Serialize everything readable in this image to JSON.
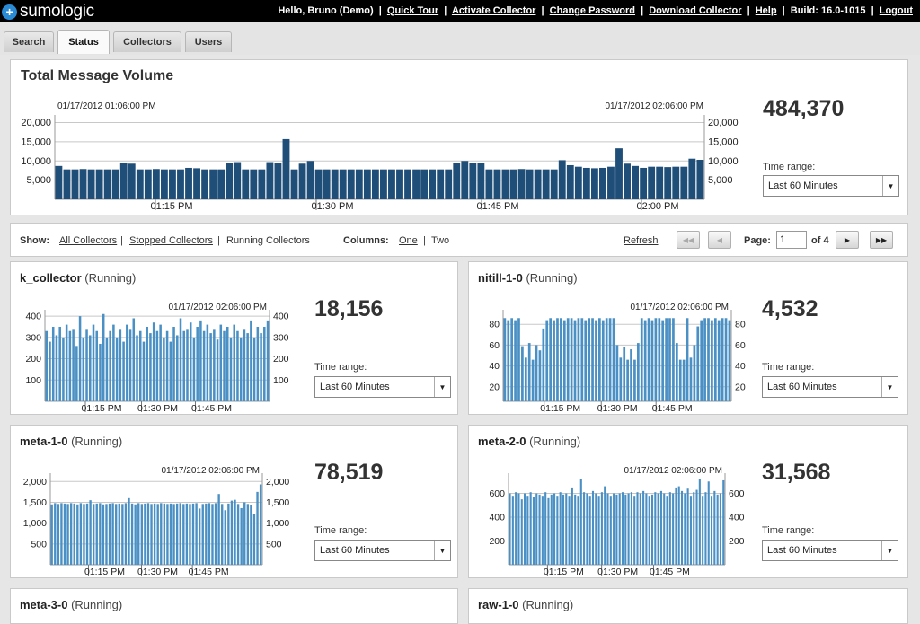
{
  "header": {
    "logo_text": "sumologic",
    "logo_mark": "+",
    "greeting_prefix": "Hello,",
    "greeting_user": "Bruno (Demo)",
    "links": [
      "Quick Tour",
      "Activate Collector",
      "Change Password",
      "Download Collector",
      "Help"
    ],
    "build": "Build: 16.0-1015",
    "logout": "Logout"
  },
  "tabs": [
    "Search",
    "Status",
    "Collectors",
    "Users"
  ],
  "total": {
    "title": "Total Message Volume",
    "value": "484,370",
    "time_range_label": "Time range:",
    "time_range_value": "Last 60 Minutes",
    "chart": {
      "start_time": "01/17/2012 01:06:00 PM",
      "end_time": "01/17/2012 02:06:00 PM"
    }
  },
  "toolbar": {
    "show_label": "Show:",
    "filters": [
      "All Collectors",
      "Stopped Collectors",
      "Running Collectors"
    ],
    "columns_label": "Columns:",
    "columns": [
      "One",
      "Two"
    ],
    "refresh": "Refresh",
    "page_label": "Page:",
    "page_value": "1",
    "page_of": "of 4"
  },
  "collectors": [
    {
      "name": "k_collector",
      "status": "(Running)",
      "value": "18,156",
      "time_range_label": "Time range:",
      "time_range_value": "Last 60 Minutes",
      "chart_time": "01/17/2012 02:06:00 PM"
    },
    {
      "name": "nitill-1-0",
      "status": "(Running)",
      "value": "4,532",
      "time_range_label": "Time range:",
      "time_range_value": "Last 60 Minutes",
      "chart_time": "01/17/2012 02:06:00 PM"
    },
    {
      "name": "meta-1-0",
      "status": "(Running)",
      "value": "78,519",
      "time_range_label": "Time range:",
      "time_range_value": "Last 60 Minutes",
      "chart_time": "01/17/2012 02:06:00 PM"
    },
    {
      "name": "meta-2-0",
      "status": "(Running)",
      "value": "31,568",
      "time_range_label": "Time range:",
      "time_range_value": "Last 60 Minutes",
      "chart_time": "01/17/2012 02:06:00 PM"
    },
    {
      "name": "meta-3-0",
      "status": "(Running)"
    },
    {
      "name": "raw-1-0",
      "status": "(Running)"
    }
  ],
  "colors": {
    "total_bar": "#1f4e79",
    "small_bar": "#4a90c4",
    "header_bg": "#000000",
    "grid": "#c8c8c8"
  },
  "chart_data": [
    {
      "id": "total",
      "type": "bar",
      "x_ticks": [
        "01:15 PM",
        "01:30 PM",
        "01:45 PM",
        "02:00 PM"
      ],
      "y_ticks": [
        5000,
        10000,
        15000,
        20000
      ],
      "ylim": [
        0,
        22000
      ],
      "values": [
        8700,
        7800,
        7800,
        7900,
        7800,
        7800,
        7800,
        7800,
        9600,
        9300,
        7800,
        7800,
        7900,
        7800,
        7800,
        7800,
        8200,
        8100,
        7800,
        7800,
        7800,
        9500,
        9700,
        7800,
        7800,
        7800,
        9700,
        9500,
        15700,
        7800,
        9300,
        10000,
        7800,
        7800,
        7800,
        7800,
        7800,
        7800,
        7800,
        7800,
        7800,
        7800,
        7800,
        7800,
        7800,
        7800,
        7800,
        7800,
        7800,
        9600,
        10000,
        9400,
        9500,
        7800,
        7800,
        7800,
        7800,
        7900,
        7800,
        7800,
        7800,
        7800,
        10200,
        8900,
        8500,
        8200,
        8100,
        8200,
        8500,
        13300,
        9300,
        8700,
        8200,
        8500,
        8500,
        8400,
        8500,
        8500,
        10600,
        10300
      ]
    },
    {
      "id": "k_collector",
      "type": "bar",
      "x_ticks": [
        "01:15 PM",
        "01:30 PM",
        "01:45 PM"
      ],
      "y_ticks": [
        100,
        200,
        300,
        400
      ],
      "ylim": [
        0,
        430
      ],
      "values": [
        330,
        280,
        350,
        310,
        350,
        300,
        360,
        330,
        340,
        260,
        400,
        300,
        340,
        310,
        360,
        330,
        270,
        410,
        300,
        330,
        360,
        300,
        340,
        280,
        360,
        340,
        390,
        310,
        330,
        280,
        350,
        320,
        370,
        330,
        360,
        300,
        330,
        280,
        350,
        310,
        390,
        330,
        340,
        370,
        300,
        350,
        380,
        330,
        360,
        320,
        340,
        290,
        360,
        330,
        350,
        300,
        360,
        330,
        300,
        340,
        320,
        380,
        300,
        350,
        320,
        350,
        380
      ]
    },
    {
      "id": "nitill-1-0",
      "type": "bar",
      "x_ticks": [
        "01:15 PM",
        "01:30 PM",
        "01:45 PM"
      ],
      "y_ticks": [
        20,
        40,
        60,
        80
      ],
      "ylim": [
        6,
        94
      ],
      "values": [
        86,
        84,
        86,
        84,
        86,
        59,
        48,
        62,
        46,
        60,
        55,
        76,
        84,
        86,
        84,
        86,
        86,
        84,
        86,
        86,
        84,
        86,
        86,
        84,
        86,
        86,
        84,
        86,
        84,
        86,
        86,
        86,
        60,
        48,
        58,
        46,
        56,
        46,
        62,
        86,
        84,
        86,
        84,
        86,
        86,
        84,
        86,
        86,
        86,
        62,
        46,
        46,
        86,
        48,
        60,
        78,
        84,
        86,
        86,
        84,
        86,
        84,
        86,
        86,
        84
      ]
    },
    {
      "id": "meta-1-0",
      "type": "bar",
      "x_ticks": [
        "01:15 PM",
        "01:30 PM",
        "01:45 PM"
      ],
      "y_ticks": [
        500,
        1000,
        1500,
        2000
      ],
      "ylim": [
        0,
        2200
      ],
      "values": [
        1450,
        1480,
        1460,
        1480,
        1470,
        1460,
        1480,
        1470,
        1450,
        1480,
        1460,
        1470,
        1550,
        1460,
        1470,
        1480,
        1450,
        1460,
        1470,
        1480,
        1460,
        1470,
        1460,
        1480,
        1600,
        1470,
        1450,
        1480,
        1460,
        1470,
        1480,
        1460,
        1470,
        1460,
        1480,
        1470,
        1460,
        1470,
        1460,
        1470,
        1480,
        1460,
        1470,
        1460,
        1470,
        1480,
        1350,
        1460,
        1470,
        1480,
        1460,
        1480,
        1700,
        1460,
        1310,
        1470,
        1540,
        1560,
        1460,
        1360,
        1500,
        1460,
        1440,
        1220,
        1750,
        1930
      ]
    },
    {
      "id": "meta-2-0",
      "type": "bar",
      "x_ticks": [
        "01:15 PM",
        "01:30 PM",
        "01:45 PM"
      ],
      "y_ticks": [
        200,
        400,
        600
      ],
      "ylim": [
        0,
        770
      ],
      "values": [
        600,
        580,
        610,
        600,
        550,
        600,
        580,
        610,
        570,
        600,
        590,
        580,
        610,
        560,
        590,
        600,
        580,
        610,
        590,
        600,
        580,
        650,
        590,
        580,
        720,
        610,
        600,
        580,
        620,
        600,
        580,
        610,
        660,
        600,
        580,
        600,
        590,
        600,
        610,
        590,
        600,
        610,
        580,
        610,
        600,
        620,
        600,
        580,
        590,
        610,
        600,
        620,
        600,
        580,
        610,
        600,
        650,
        660,
        620,
        600,
        640,
        580,
        610,
        630,
        720,
        580,
        610,
        700,
        580,
        620,
        590,
        600,
        710
      ]
    }
  ]
}
